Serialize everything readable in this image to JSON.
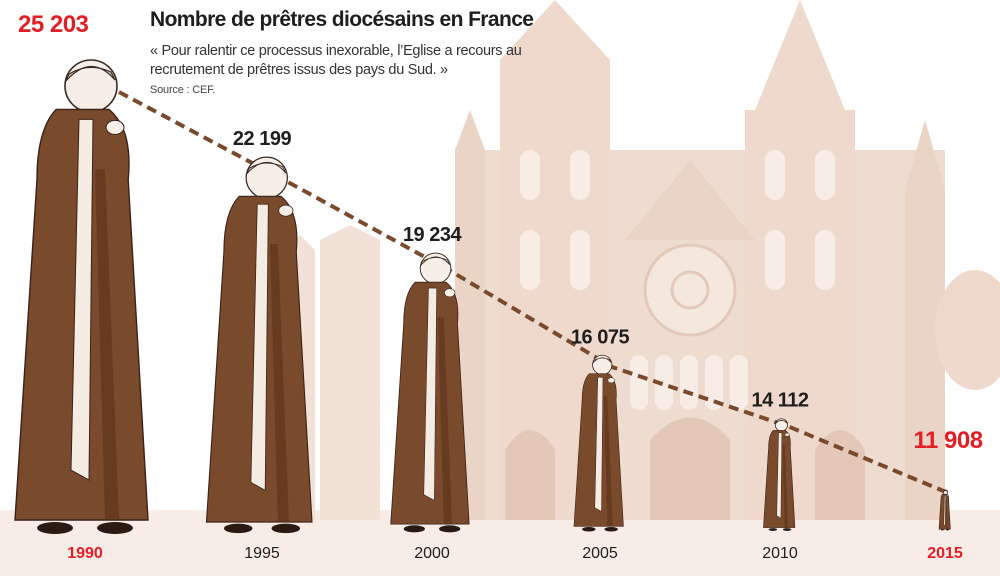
{
  "title": "Nombre de prêtres diocésains en France",
  "quote": "« Pour ralentir ce processus inexorable, l’Eglise a recours au recrutement de prêtres issus des pays du Sud. »",
  "source": "Source : CEF.",
  "colors": {
    "highlight": "#e31f26",
    "text": "#1e1e1e",
    "robe": "#7a4a2c",
    "robe_dark": "#5a3219",
    "stole": "#f4ece2",
    "cathedral": "#efdcd0",
    "cathedral_shade": "#e3c8b8",
    "ground": "#f0e0d4",
    "dash": "#7a4a2c"
  },
  "chart_data": {
    "type": "line",
    "x": [
      1990,
      1995,
      2000,
      2005,
      2010,
      2015
    ],
    "values": [
      25203,
      22199,
      19234,
      16075,
      14112,
      11908
    ],
    "value_labels": [
      "25 203",
      "22 199",
      "19 234",
      "16 075",
      "14 112",
      "11 908"
    ],
    "highlight": [
      true,
      false,
      false,
      false,
      false,
      true
    ],
    "marker": "priest-figure",
    "line_style": "dashed"
  }
}
